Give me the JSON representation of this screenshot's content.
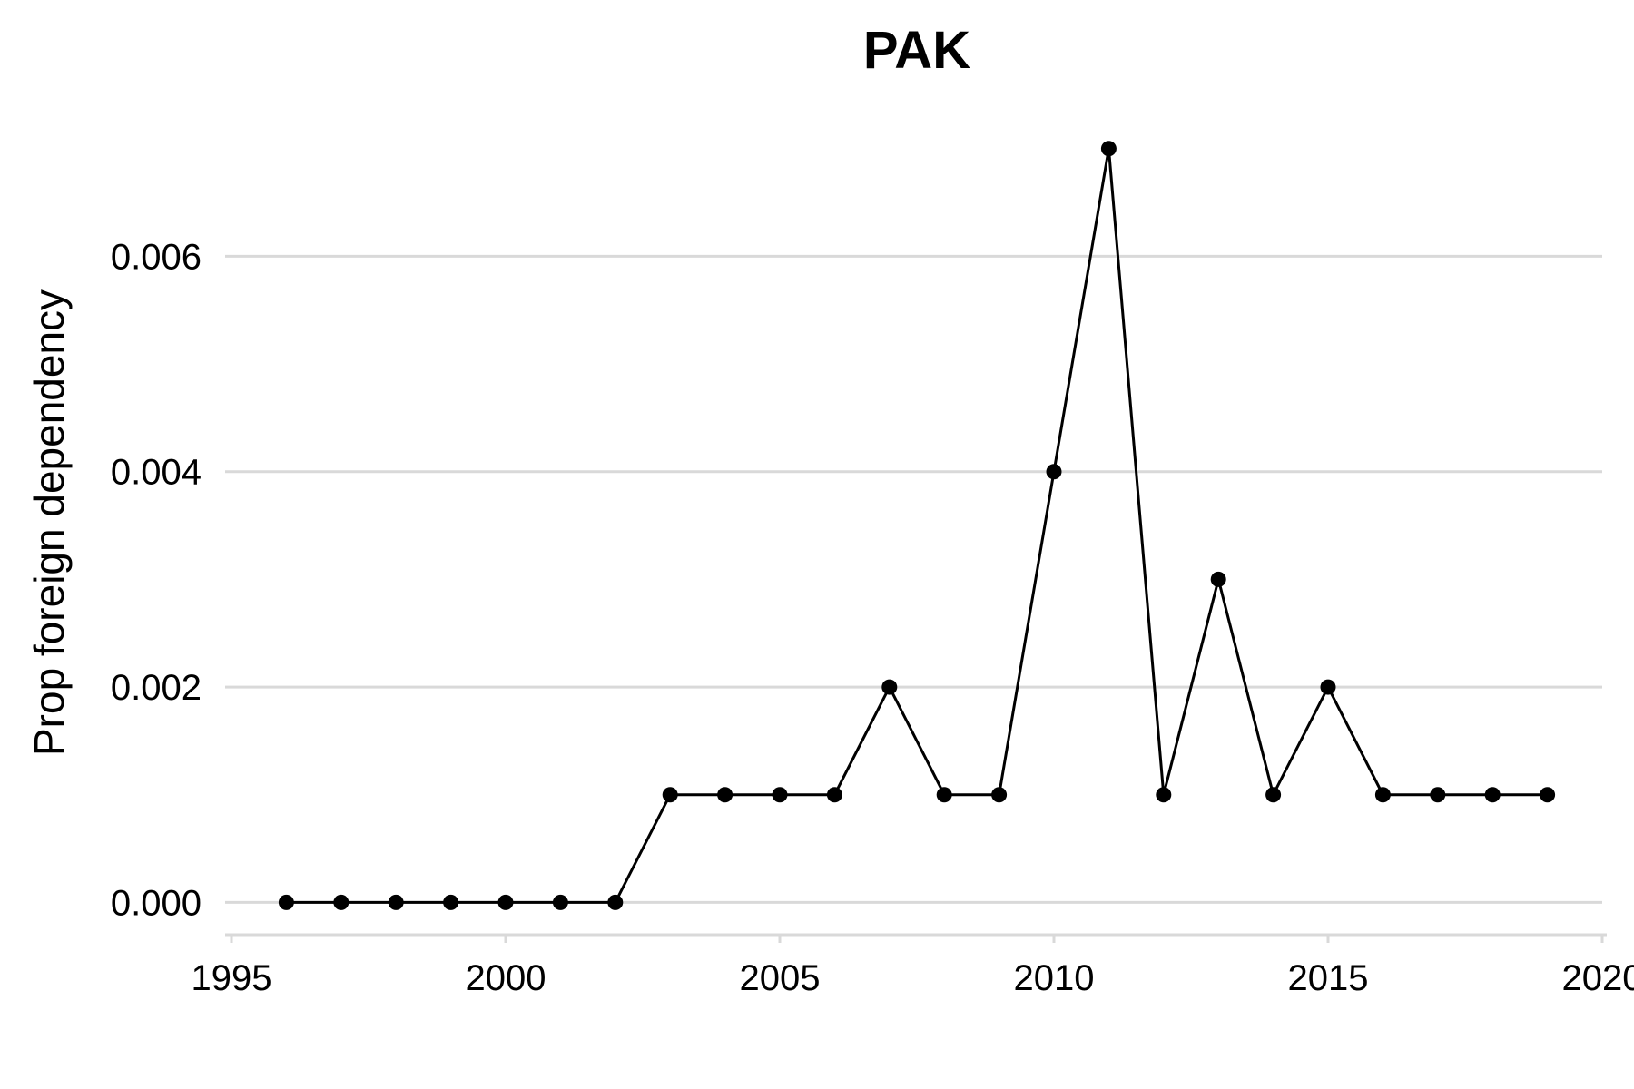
{
  "chart_data": {
    "type": "line",
    "title": "PAK",
    "xlabel": "",
    "ylabel": "Prop foreign dependency",
    "xlim": [
      1995,
      2020
    ],
    "ylim": [
      -0.0003,
      0.0072
    ],
    "x_ticks": [
      1995,
      2000,
      2005,
      2010,
      2015,
      2020
    ],
    "x_tick_labels": [
      "1995",
      "2000",
      "2005",
      "2010",
      "2015",
      "2020"
    ],
    "y_ticks": [
      0,
      0.002,
      0.004,
      0.006
    ],
    "y_tick_labels": [
      "0.000",
      "0.002",
      "0.004",
      "0.006"
    ],
    "grid": "horizontal",
    "legend": "none",
    "series": [
      {
        "color": "#000000",
        "x": [
          1996,
          1997,
          1998,
          1999,
          2000,
          2001,
          2002,
          2003,
          2004,
          2005,
          2006,
          2007,
          2008,
          2009,
          2010,
          2011,
          2012,
          2013,
          2014,
          2015,
          2016,
          2017,
          2018,
          2019
        ],
        "y": [
          0,
          0,
          0,
          0,
          0,
          0,
          0,
          0.001,
          0.001,
          0.001,
          0.001,
          0.002,
          0.001,
          0.001,
          0.004,
          0.007,
          0.001,
          0.003,
          0.001,
          0.002,
          0.001,
          0.001,
          0.001,
          0.001
        ]
      }
    ]
  }
}
